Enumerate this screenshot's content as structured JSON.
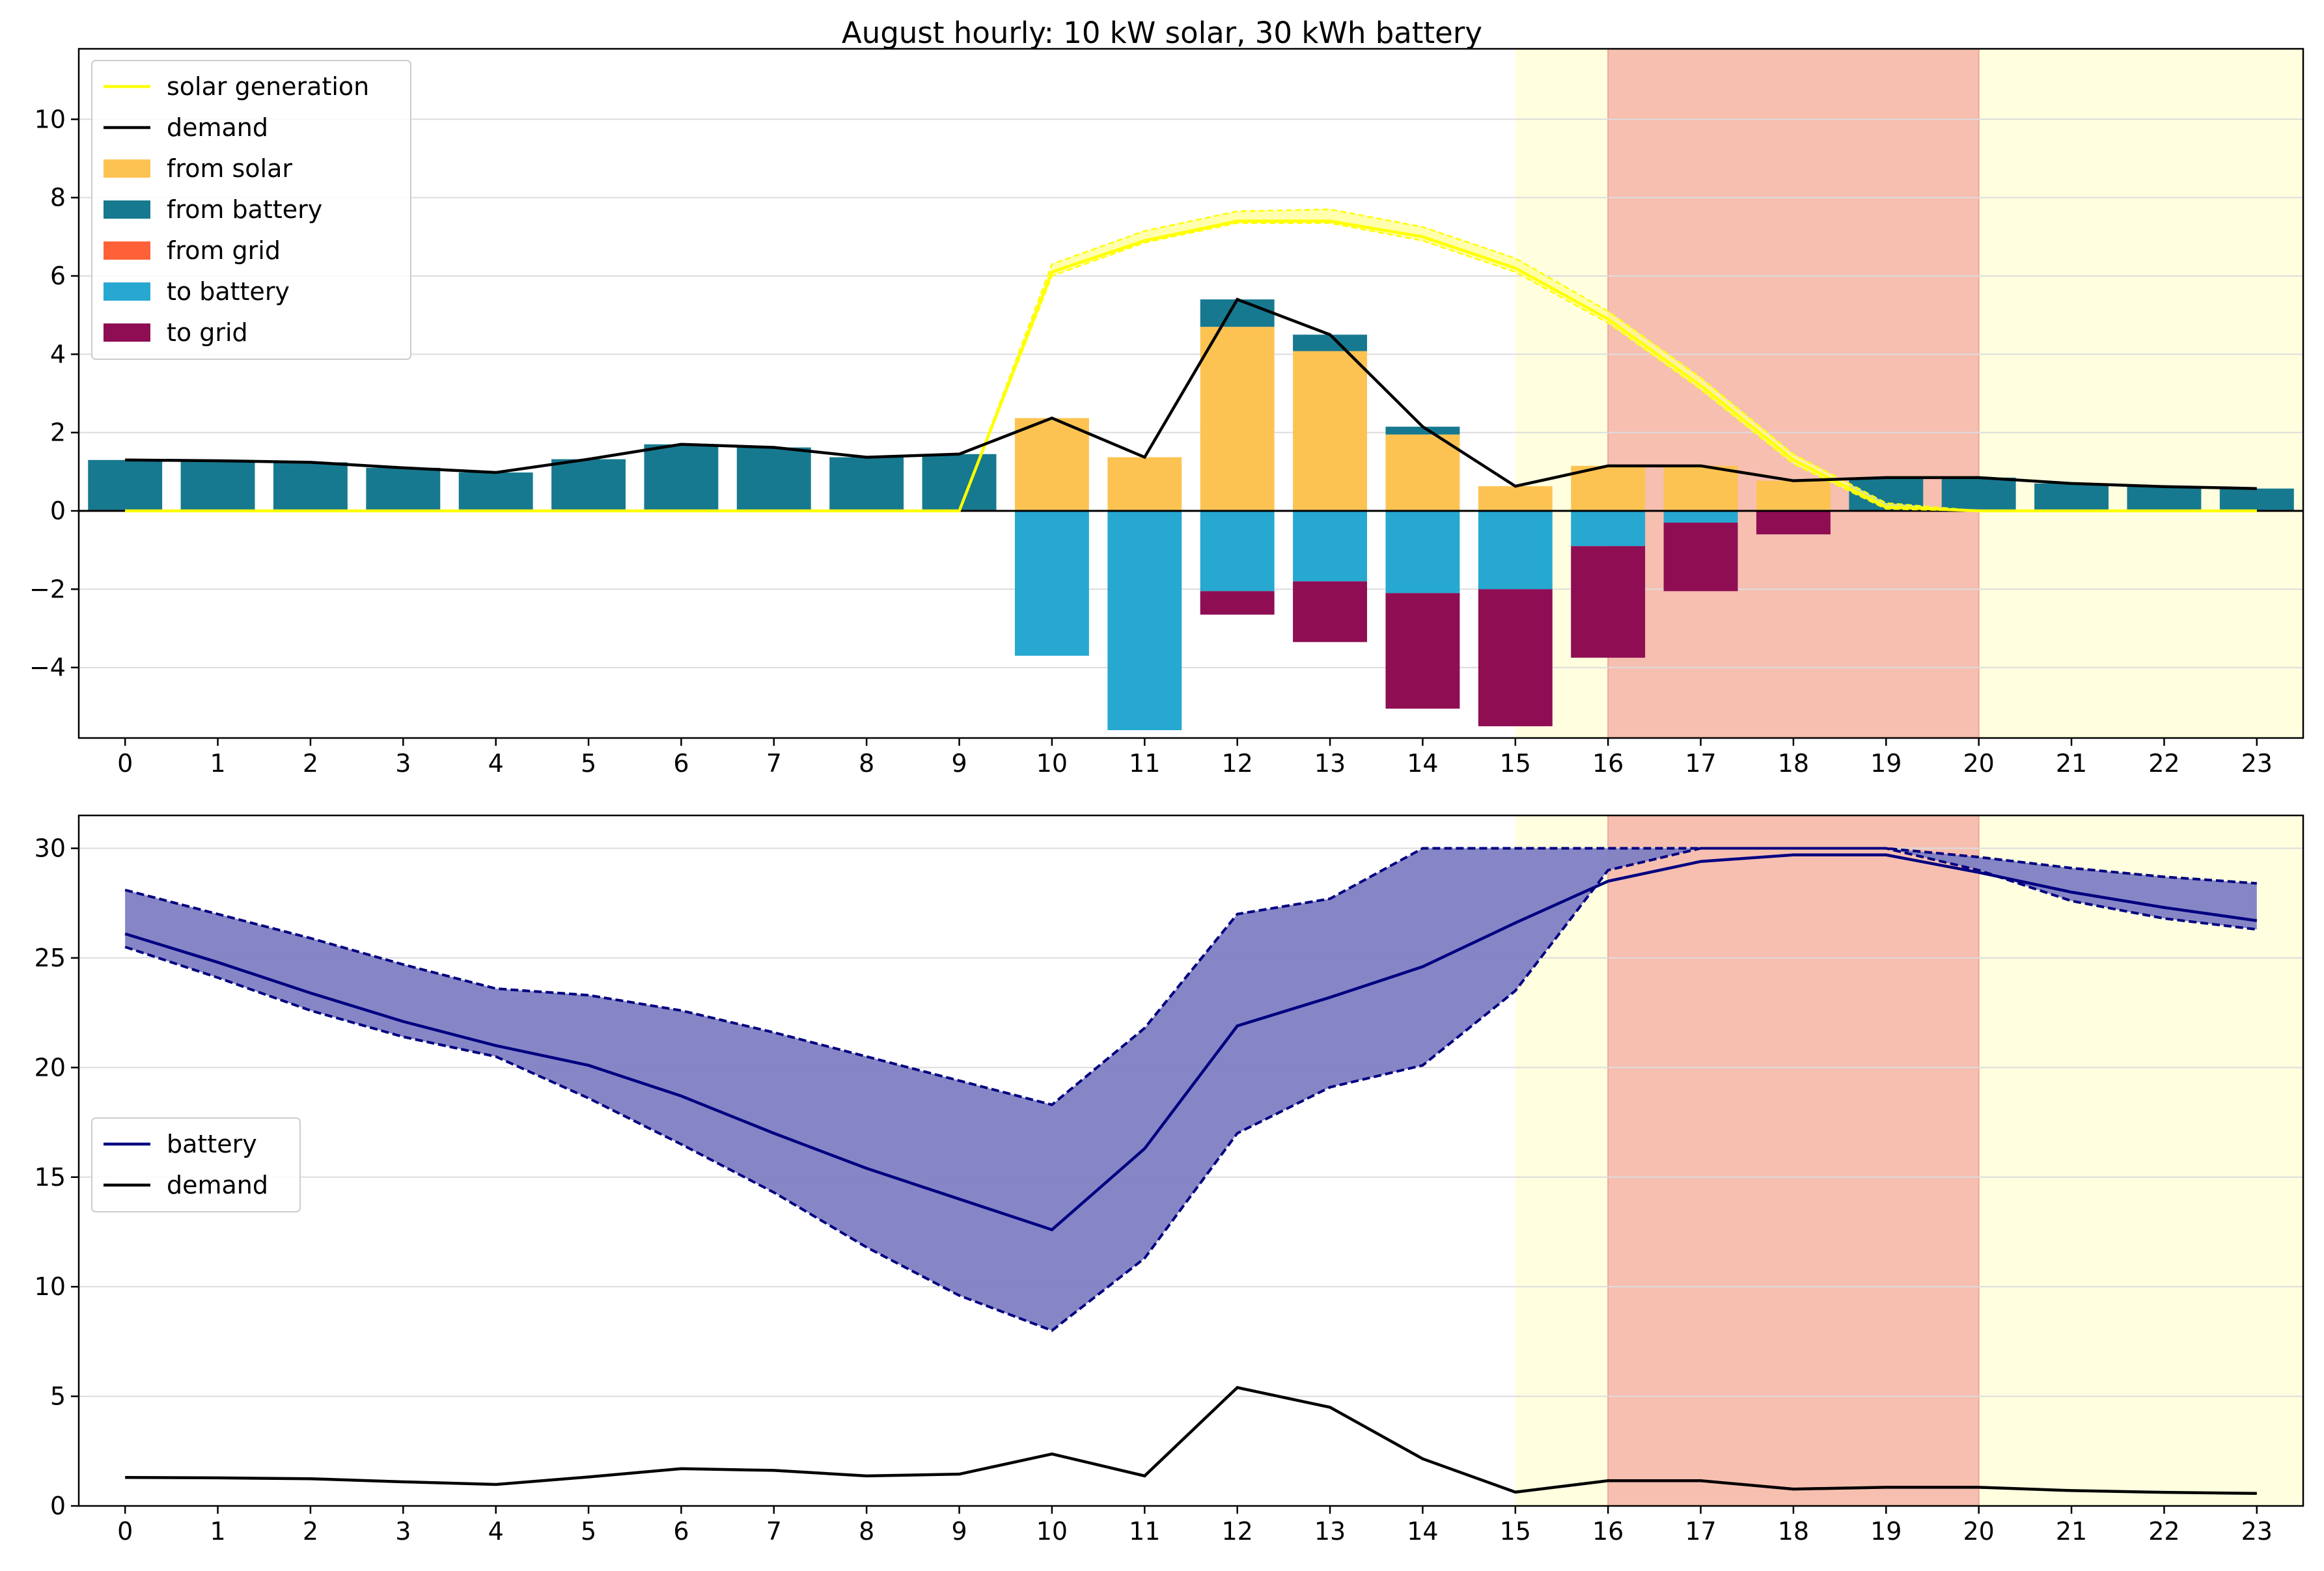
{
  "title": "August hourly: 10 kW solar, 30 kWh battery",
  "colors": {
    "solar_line": "#ffff00",
    "solar_band": "#ffff99",
    "demand": "#000000",
    "from_solar": "#fdc352",
    "from_battery": "#17798f",
    "from_grid": "#fe6137",
    "to_battery": "#26a8d1",
    "to_grid": "#8e0d53",
    "battery_line": "#000080",
    "battery_band": "#7f7fc4",
    "shade_yellow": "#ffffe0",
    "shade_red": "#f6bfb0",
    "grid": "#dcdcdc"
  },
  "chart_data": [
    {
      "type": "bar",
      "stacked": true,
      "title": "August hourly: 10 kW solar, 30 kWh battery",
      "xlabel": "",
      "ylabel": "",
      "x": [
        0,
        1,
        2,
        3,
        4,
        5,
        6,
        7,
        8,
        9,
        10,
        11,
        12,
        13,
        14,
        15,
        16,
        17,
        18,
        19,
        20,
        21,
        22,
        23
      ],
      "xlim": [
        -0.5,
        23.5
      ],
      "ylim": [
        -5.8,
        11.8
      ],
      "yticks": [
        -4,
        -2,
        0,
        2,
        4,
        6,
        8,
        10
      ],
      "grid": "horizontal",
      "legend_position": "upper-left",
      "shaded_regions": [
        {
          "from": 15,
          "to": 23.5,
          "color": "yellow"
        },
        {
          "from": 16,
          "to": 20,
          "color": "red"
        }
      ],
      "lines": [
        {
          "name": "solar generation",
          "values": [
            0,
            0,
            0,
            0,
            0,
            0,
            0,
            0,
            0,
            0,
            6.1,
            6.9,
            7.4,
            7.4,
            7.0,
            6.2,
            4.9,
            3.2,
            1.3,
            0.1,
            0,
            0,
            0,
            0
          ],
          "band_low": [
            0,
            0,
            0,
            0,
            0,
            0,
            0,
            0,
            0,
            0,
            6.0,
            6.85,
            7.35,
            7.35,
            6.9,
            6.1,
            4.8,
            3.1,
            1.2,
            0.05,
            0,
            0,
            0,
            0
          ],
          "band_high": [
            0,
            0,
            0,
            0,
            0,
            0,
            0,
            0,
            0,
            0,
            6.3,
            7.15,
            7.65,
            7.7,
            7.25,
            6.45,
            5.1,
            3.4,
            1.45,
            0.2,
            0,
            0,
            0,
            0
          ]
        },
        {
          "name": "demand",
          "values": [
            1.3,
            1.28,
            1.24,
            1.1,
            0.98,
            1.32,
            1.7,
            1.62,
            1.37,
            1.45,
            2.37,
            1.37,
            5.4,
            4.5,
            2.15,
            0.63,
            1.15,
            1.15,
            0.77,
            0.85,
            0.85,
            0.7,
            0.62,
            0.57
          ]
        }
      ],
      "series": [
        {
          "name": "from solar",
          "values": [
            0,
            0,
            0,
            0,
            0,
            0,
            0,
            0,
            0,
            0,
            2.37,
            1.37,
            4.7,
            4.08,
            1.95,
            0.63,
            1.15,
            1.15,
            0.77,
            0,
            0,
            0,
            0,
            0
          ]
        },
        {
          "name": "from battery",
          "values": [
            1.3,
            1.28,
            1.24,
            1.1,
            0.98,
            1.32,
            1.7,
            1.62,
            1.37,
            1.45,
            0,
            0,
            0.7,
            0.42,
            0.2,
            0,
            0,
            0,
            0,
            0.85,
            0.85,
            0.7,
            0.62,
            0.57
          ]
        },
        {
          "name": "from grid",
          "values": [
            0,
            0,
            0,
            0,
            0,
            0,
            0,
            0,
            0,
            0,
            0,
            0,
            0,
            0,
            0,
            0,
            0,
            0,
            0,
            0,
            0,
            0,
            0,
            0
          ]
        },
        {
          "name": "to battery",
          "values": [
            0,
            0,
            0,
            0,
            0,
            0,
            0,
            0,
            0,
            0,
            -3.7,
            -5.6,
            -2.05,
            -1.8,
            -2.1,
            -2.0,
            -0.9,
            -0.3,
            0,
            0,
            0,
            0,
            0,
            0
          ]
        },
        {
          "name": "to grid",
          "values": [
            0,
            0,
            0,
            0,
            0,
            0,
            0,
            0,
            0,
            0,
            0,
            0,
            -0.6,
            -1.55,
            -2.95,
            -3.5,
            -2.85,
            -1.75,
            -0.6,
            0,
            0,
            0,
            0,
            0
          ]
        }
      ]
    },
    {
      "type": "line",
      "title": "",
      "xlabel": "",
      "ylabel": "",
      "x": [
        0,
        1,
        2,
        3,
        4,
        5,
        6,
        7,
        8,
        9,
        10,
        11,
        12,
        13,
        14,
        15,
        16,
        17,
        18,
        19,
        20,
        21,
        22,
        23
      ],
      "xlim": [
        -0.5,
        23.5
      ],
      "ylim": [
        0,
        31.5
      ],
      "yticks": [
        0,
        5,
        10,
        15,
        20,
        25,
        30
      ],
      "grid": "horizontal",
      "legend_position": "center-left",
      "shaded_regions": [
        {
          "from": 15,
          "to": 23.5,
          "color": "yellow"
        },
        {
          "from": 16,
          "to": 20,
          "color": "red"
        }
      ],
      "series": [
        {
          "name": "battery",
          "values": [
            26.1,
            24.8,
            23.4,
            22.1,
            21.0,
            20.1,
            18.7,
            17.0,
            15.4,
            14.0,
            12.6,
            16.3,
            21.9,
            23.2,
            24.6,
            26.6,
            28.5,
            29.4,
            29.7,
            29.7,
            28.9,
            28.0,
            27.3,
            26.7
          ],
          "band_low": [
            25.5,
            24.1,
            22.6,
            21.4,
            20.5,
            18.6,
            16.5,
            14.3,
            11.8,
            9.6,
            8.0,
            11.3,
            17.0,
            19.1,
            20.1,
            23.5,
            29.0,
            30.0,
            30.0,
            30.0,
            29.0,
            27.6,
            26.8,
            26.3
          ],
          "band_high": [
            28.1,
            27.0,
            25.9,
            24.7,
            23.6,
            23.3,
            22.6,
            21.6,
            20.5,
            19.4,
            18.3,
            21.8,
            27.0,
            27.7,
            30.0,
            30.0,
            30.0,
            30.0,
            30.0,
            30.0,
            29.6,
            29.1,
            28.7,
            28.4
          ]
        },
        {
          "name": "demand",
          "values": [
            1.3,
            1.28,
            1.24,
            1.1,
            0.98,
            1.32,
            1.7,
            1.62,
            1.37,
            1.45,
            2.37,
            1.37,
            5.4,
            4.5,
            2.15,
            0.63,
            1.15,
            1.15,
            0.77,
            0.85,
            0.85,
            0.7,
            0.62,
            0.57
          ]
        }
      ]
    }
  ]
}
